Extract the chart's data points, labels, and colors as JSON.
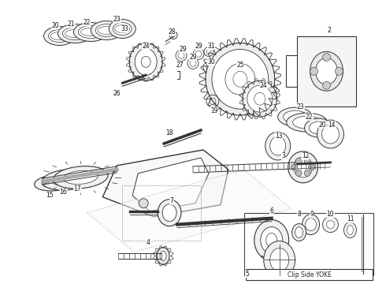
{
  "bg_color": "#ffffff",
  "fig_width": 4.9,
  "fig_height": 3.6,
  "dpi": 100,
  "line_color": "#333333",
  "label_color": "#111111",
  "label_fontsize": 5.5,
  "note_text": "Clip Side YOKE",
  "note_fontsize": 5.5
}
